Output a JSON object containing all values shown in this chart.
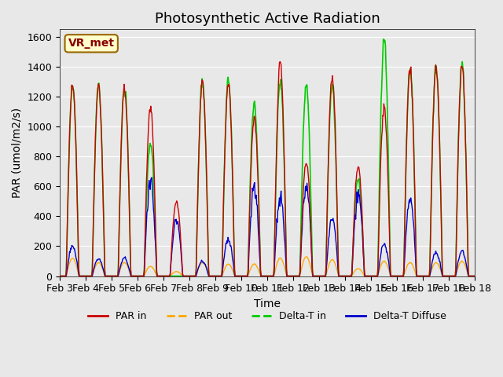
{
  "title": "Photosynthetic Active Radiation",
  "ylabel": "PAR (umol/m2/s)",
  "xlabel": "Time",
  "legend_labels": [
    "PAR in",
    "PAR out",
    "Delta-T in",
    "Delta-T Diffuse"
  ],
  "legend_colors": [
    "#cc0000",
    "#ffaa00",
    "#00cc00",
    "#0000cc"
  ],
  "annotation_text": "VR_met",
  "annotation_bbox_facecolor": "#ffffcc",
  "annotation_bbox_edgecolor": "#996600",
  "ylim": [
    0,
    1650
  ],
  "background_color": "#e8e8e8",
  "axes_facecolor": "#e8e8e8",
  "grid_color": "white",
  "title_fontsize": 13,
  "axis_fontsize": 10,
  "tick_fontsize": 9,
  "days": [
    "Feb 3",
    "Feb 4",
    "Feb 5",
    "Feb 6",
    "Feb 7",
    "Feb 8",
    "Feb 9",
    "Feb 10",
    "Feb 11",
    "Feb 12",
    "Feb 13",
    "Feb 14",
    "Feb 15",
    "Feb 16",
    "Feb 17",
    "Feb 18"
  ],
  "day_peaks_par_in": [
    1280,
    1270,
    1270,
    1130,
    500,
    1300,
    1300,
    1050,
    1440,
    760,
    1350,
    730,
    1130,
    1390,
    1400,
    1410
  ],
  "day_peaks_par_out": [
    120,
    90,
    90,
    65,
    30,
    90,
    80,
    80,
    120,
    130,
    110,
    50,
    100,
    90,
    90,
    100
  ],
  "day_peaks_delta_t_in": [
    1270,
    1260,
    1260,
    900,
    0,
    1295,
    1305,
    1155,
    1310,
    1290,
    1270,
    650,
    1580,
    1390,
    1400,
    1410
  ],
  "day_peaks_delta_t_diff": [
    200,
    115,
    120,
    640,
    370,
    100,
    245,
    600,
    530,
    620,
    385,
    545,
    215,
    530,
    155,
    165
  ],
  "n_points_per_day": 48,
  "start_day": 3,
  "cloudy_days": [
    6,
    7
  ]
}
